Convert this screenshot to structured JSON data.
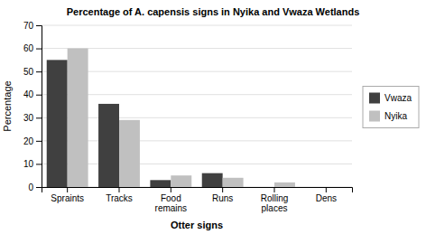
{
  "chart_data": {
    "type": "bar",
    "title": "Percentage of A. capensis signs in Nyika and Vwaza Wetlands",
    "xlabel": "Otter signs",
    "ylabel": "Percentage",
    "categories": [
      "Spraints",
      "Tracks",
      "Food\nremains",
      "Runs",
      "Rolling\nplaces",
      "Dens"
    ],
    "series": [
      {
        "name": "Vwaza",
        "color": "#404040",
        "values": [
          55,
          36,
          3,
          6,
          0,
          0
        ]
      },
      {
        "name": "Nyika",
        "color": "#c0c0c0",
        "values": [
          60,
          29,
          5,
          4,
          2,
          0
        ]
      }
    ],
    "ylim": [
      0,
      70
    ],
    "yticks": [
      0,
      10,
      20,
      30,
      40,
      50,
      60,
      70
    ],
    "grid": true,
    "legend": "right"
  }
}
